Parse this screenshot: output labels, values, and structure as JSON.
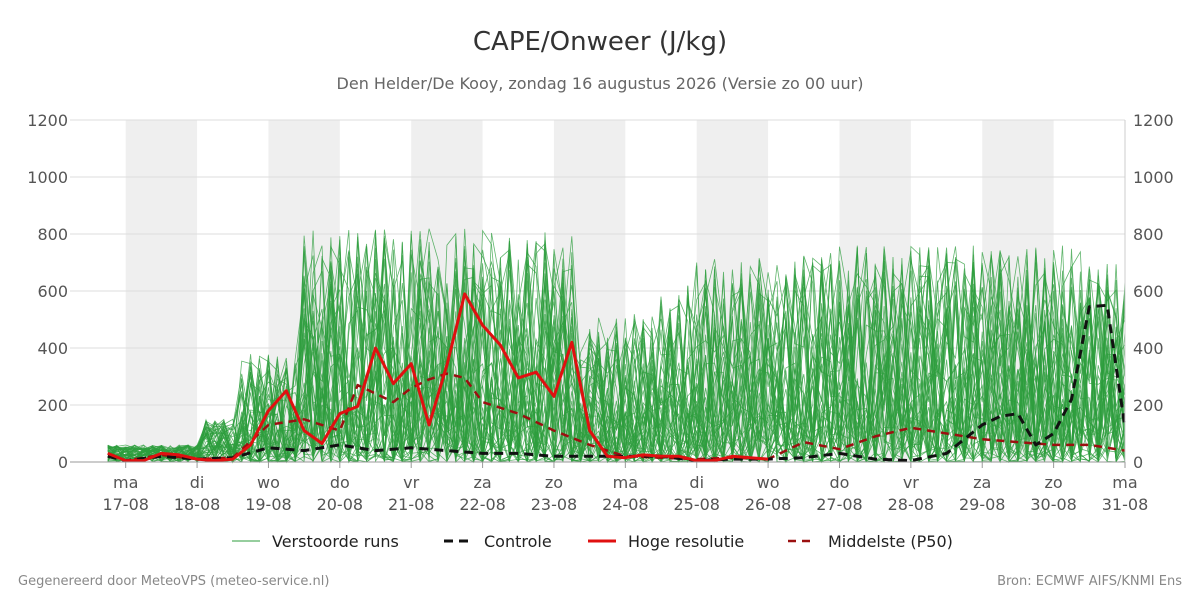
{
  "chart_data": {
    "type": "line",
    "title": "CAPE/Onweer (J/kg)",
    "subtitle": "Den Helder/De Kooy, zondag 16 augustus 2026 (Versie zo 00 uur)",
    "ylim": [
      0,
      1200
    ],
    "yticks": [
      0,
      200,
      400,
      600,
      800,
      1000,
      1200
    ],
    "xlim_days": [
      16.5,
      31
    ],
    "x_ticks": [
      {
        "day_label": "ma",
        "date_label": "17-08",
        "day": 17
      },
      {
        "day_label": "di",
        "date_label": "18-08",
        "day": 18
      },
      {
        "day_label": "wo",
        "date_label": "19-08",
        "day": 19
      },
      {
        "day_label": "do",
        "date_label": "20-08",
        "day": 20
      },
      {
        "day_label": "vr",
        "date_label": "21-08",
        "day": 21
      },
      {
        "day_label": "za",
        "date_label": "22-08",
        "day": 22
      },
      {
        "day_label": "zo",
        "date_label": "23-08",
        "day": 23
      },
      {
        "day_label": "ma",
        "date_label": "24-08",
        "day": 24
      },
      {
        "day_label": "di",
        "date_label": "25-08",
        "day": 25
      },
      {
        "day_label": "wo",
        "date_label": "26-08",
        "day": 26
      },
      {
        "day_label": "do",
        "date_label": "27-08",
        "day": 27
      },
      {
        "day_label": "vr",
        "date_label": "28-08",
        "day": 28
      },
      {
        "day_label": "za",
        "date_label": "29-08",
        "day": 29
      },
      {
        "day_label": "zo",
        "date_label": "30-08",
        "day": 30
      },
      {
        "day_label": "ma",
        "date_label": "31-08",
        "day": 31
      }
    ],
    "shaded_days": [
      [
        17,
        18
      ],
      [
        19,
        20
      ],
      [
        21,
        22
      ],
      [
        23,
        24
      ],
      [
        25,
        26
      ],
      [
        27,
        28
      ],
      [
        29,
        30
      ]
    ],
    "colors": {
      "ensemble": "#2e9e3e",
      "controle": "#111111",
      "hoge_resolutie": "#e01010",
      "middelste": "#9b1010",
      "shade": "#efefef",
      "grid": "#dddddd"
    },
    "series": [
      {
        "name": "Hoge resolutie",
        "style": "solid-red",
        "x": [
          16.75,
          17.0,
          17.25,
          17.5,
          17.75,
          18.0,
          18.25,
          18.5,
          18.75,
          19.0,
          19.25,
          19.5,
          19.75,
          20.0,
          20.25,
          20.5,
          20.75,
          21.0,
          21.25,
          21.5,
          21.75,
          22.0,
          22.25,
          22.5,
          22.75,
          23.0,
          23.25,
          23.5,
          23.75,
          24.0,
          24.25,
          24.5,
          24.75,
          25.0,
          25.25,
          25.5,
          25.75,
          26.0
        ],
        "values": [
          30,
          5,
          5,
          30,
          25,
          10,
          5,
          10,
          60,
          180,
          250,
          110,
          65,
          170,
          195,
          400,
          275,
          345,
          130,
          340,
          590,
          480,
          410,
          295,
          315,
          230,
          420,
          110,
          20,
          15,
          25,
          20,
          20,
          5,
          5,
          20,
          15,
          10
        ]
      },
      {
        "name": "Controle",
        "style": "dashed-black",
        "x": [
          16.75,
          17.0,
          17.5,
          18.0,
          18.5,
          19.0,
          19.5,
          20.0,
          20.5,
          21.0,
          21.5,
          22.0,
          22.5,
          23.0,
          23.5,
          24.0,
          24.5,
          25.0,
          25.5,
          26.0,
          26.5,
          27.0,
          27.5,
          28.0,
          28.5,
          29.0,
          29.25,
          29.5,
          29.75,
          30.0,
          30.25,
          30.5,
          30.75,
          31.0
        ],
        "values": [
          20,
          5,
          20,
          10,
          15,
          50,
          40,
          60,
          40,
          50,
          40,
          30,
          30,
          20,
          20,
          20,
          20,
          5,
          10,
          10,
          15,
          30,
          10,
          5,
          30,
          130,
          160,
          170,
          60,
          100,
          220,
          545,
          550,
          120
        ]
      },
      {
        "name": "Middelste (P50)",
        "style": "dashed-darkred",
        "x": [
          16.75,
          17.0,
          17.5,
          18.0,
          18.5,
          19.0,
          19.5,
          20.0,
          20.25,
          20.5,
          20.75,
          21.0,
          21.25,
          21.5,
          21.75,
          22.0,
          22.5,
          23.0,
          23.5,
          24.0,
          24.5,
          25.0,
          25.5,
          26.0,
          26.5,
          27.0,
          27.5,
          28.0,
          28.25,
          28.5,
          29.0,
          29.5,
          30.0,
          30.5,
          31.0
        ],
        "values": [
          30,
          5,
          25,
          10,
          15,
          130,
          150,
          110,
          270,
          240,
          210,
          260,
          290,
          310,
          295,
          210,
          170,
          110,
          60,
          20,
          15,
          10,
          15,
          10,
          70,
          45,
          90,
          120,
          110,
          100,
          80,
          70,
          60,
          60,
          40
        ]
      }
    ],
    "legend": [
      {
        "label": "Verstoorde runs",
        "style": "thin-green"
      },
      {
        "label": "Controle",
        "style": "dashed-black"
      },
      {
        "label": "Hoge resolutie",
        "style": "solid-red"
      },
      {
        "label": "Middelste (P50)",
        "style": "dashed-darkred"
      }
    ],
    "legend_position": "bottom",
    "grid": true
  },
  "footer": {
    "left": "Gegenereerd door MeteoVPS (meteo-service.nl)",
    "right": "Bron: ECMWF AIFS/KNMI Ens"
  }
}
